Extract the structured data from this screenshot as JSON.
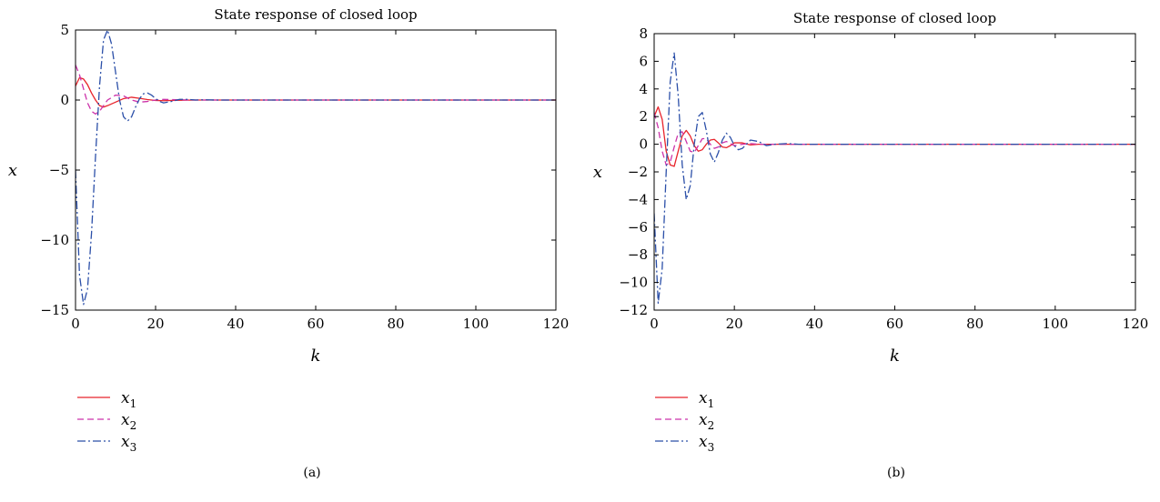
{
  "chart_data": [
    {
      "type": "line",
      "title": "State response of closed loop",
      "xlabel": "k",
      "ylabel": "x",
      "caption": "(a)",
      "xlim": [
        0,
        120
      ],
      "ylim": [
        -15,
        5
      ],
      "xticks": [
        0,
        20,
        40,
        60,
        80,
        100,
        120
      ],
      "yticks": [
        -15,
        -10,
        -5,
        0,
        5
      ],
      "ytick_labels": [
        "−15",
        "−10",
        "−5",
        "0",
        "5"
      ],
      "legend_position": "below-left",
      "series": [
        {
          "name": "x",
          "sub": "1",
          "color": "#e8242c",
          "dash": "solid",
          "x": [
            0,
            1,
            2,
            3,
            4,
            5,
            6,
            7,
            8,
            10,
            12,
            14,
            16,
            18,
            20,
            22,
            25,
            30,
            40,
            60,
            80,
            100,
            120
          ],
          "y": [
            1.0,
            1.6,
            1.5,
            1.1,
            0.5,
            0.0,
            -0.4,
            -0.5,
            -0.4,
            -0.15,
            0.1,
            0.2,
            0.12,
            0.03,
            -0.03,
            -0.05,
            -0.02,
            0.0,
            0.0,
            0.0,
            0.0,
            0.0,
            0.0
          ]
        },
        {
          "name": "x",
          "sub": "2",
          "color": "#cc33aa",
          "dash": "dashed",
          "x": [
            0,
            1,
            2,
            3,
            4,
            5,
            6,
            7,
            8,
            10,
            12,
            14,
            16,
            18,
            20,
            22,
            25,
            30,
            40,
            60,
            80,
            100,
            120
          ],
          "y": [
            2.5,
            1.8,
            0.8,
            -0.2,
            -0.8,
            -1.0,
            -0.8,
            -0.4,
            0.0,
            0.35,
            0.3,
            0.0,
            -0.15,
            -0.1,
            0.0,
            0.05,
            0.02,
            0.0,
            0.0,
            0.0,
            0.0,
            0.0,
            0.0
          ]
        },
        {
          "name": "x",
          "sub": "3",
          "color": "#2b4fa8",
          "dash": "dashdot",
          "x": [
            0,
            1,
            2,
            3,
            4,
            5,
            6,
            7,
            8,
            9,
            10,
            11,
            12,
            13,
            14,
            15,
            16,
            17,
            18,
            19,
            20,
            21,
            22,
            24,
            26,
            28,
            30,
            32,
            35,
            40,
            60,
            80,
            100,
            120
          ],
          "y": [
            -5.0,
            -12.5,
            -14.6,
            -13.5,
            -9.5,
            -4.0,
            1.0,
            4.3,
            5.0,
            4.0,
            2.0,
            0.0,
            -1.2,
            -1.5,
            -1.2,
            -0.5,
            0.1,
            0.45,
            0.5,
            0.35,
            0.1,
            -0.1,
            -0.2,
            -0.1,
            0.05,
            0.05,
            0.0,
            0.02,
            0.0,
            0.0,
            0.0,
            0.0,
            0.0,
            0.0
          ]
        }
      ]
    },
    {
      "type": "line",
      "title": "State response of closed loop",
      "xlabel": "k",
      "ylabel": "x",
      "caption": "(b)",
      "xlim": [
        0,
        120
      ],
      "ylim": [
        -12,
        8
      ],
      "xticks": [
        0,
        20,
        40,
        60,
        80,
        100,
        120
      ],
      "yticks": [
        -12,
        -10,
        -8,
        -6,
        -4,
        -2,
        0,
        2,
        4,
        6,
        8
      ],
      "ytick_labels": [
        "−12",
        "−10",
        "−8",
        "−6",
        "−4",
        "−2",
        "0",
        "2",
        "4",
        "6",
        "8"
      ],
      "legend_position": "below-left",
      "series": [
        {
          "name": "x",
          "sub": "1",
          "color": "#e8242c",
          "dash": "solid",
          "x": [
            0,
            1,
            2,
            3,
            4,
            5,
            6,
            7,
            8,
            9,
            10,
            11,
            12,
            13,
            14,
            15,
            16,
            17,
            18,
            19,
            20,
            22,
            24,
            26,
            30,
            40,
            60,
            80,
            100,
            120
          ],
          "y": [
            2.0,
            2.7,
            1.8,
            -0.5,
            -1.5,
            -1.6,
            -0.5,
            0.6,
            1.0,
            0.6,
            -0.1,
            -0.5,
            -0.4,
            0.0,
            0.3,
            0.35,
            0.1,
            -0.2,
            -0.25,
            -0.1,
            0.1,
            0.1,
            -0.05,
            0.0,
            0.0,
            0.0,
            0.0,
            0.0,
            0.0,
            0.0
          ]
        },
        {
          "name": "x",
          "sub": "2",
          "color": "#cc33aa",
          "dash": "dashed",
          "x": [
            0,
            1,
            2,
            3,
            4,
            5,
            6,
            7,
            8,
            9,
            10,
            11,
            12,
            13,
            14,
            15,
            16,
            17,
            18,
            19,
            20,
            22,
            24,
            26,
            30,
            40,
            60,
            80,
            100,
            120
          ],
          "y": [
            2.3,
            1.2,
            -0.5,
            -1.5,
            -1.3,
            -0.2,
            0.8,
            0.9,
            0.2,
            -0.5,
            -0.6,
            -0.1,
            0.4,
            0.4,
            0.0,
            -0.3,
            -0.2,
            0.1,
            0.2,
            0.05,
            -0.1,
            0.0,
            0.05,
            0.0,
            0.0,
            0.0,
            0.0,
            0.0,
            0.0,
            0.0
          ]
        },
        {
          "name": "x",
          "sub": "3",
          "color": "#2b4fa8",
          "dash": "dashdot",
          "x": [
            0,
            1,
            2,
            3,
            4,
            5,
            6,
            7,
            8,
            9,
            10,
            11,
            12,
            13,
            14,
            15,
            16,
            17,
            18,
            19,
            20,
            21,
            22,
            24,
            26,
            28,
            30,
            33,
            36,
            40,
            60,
            80,
            100,
            120
          ],
          "y": [
            -5.0,
            -11.5,
            -9.0,
            -2.0,
            4.5,
            6.6,
            3.5,
            -1.5,
            -4.0,
            -3.0,
            0.0,
            2.0,
            2.3,
            1.0,
            -0.7,
            -1.3,
            -0.6,
            0.3,
            0.8,
            0.5,
            -0.1,
            -0.4,
            -0.3,
            0.3,
            0.2,
            -0.1,
            0.0,
            0.05,
            0.0,
            0.0,
            0.0,
            0.0,
            0.0,
            0.0
          ]
        }
      ]
    }
  ]
}
